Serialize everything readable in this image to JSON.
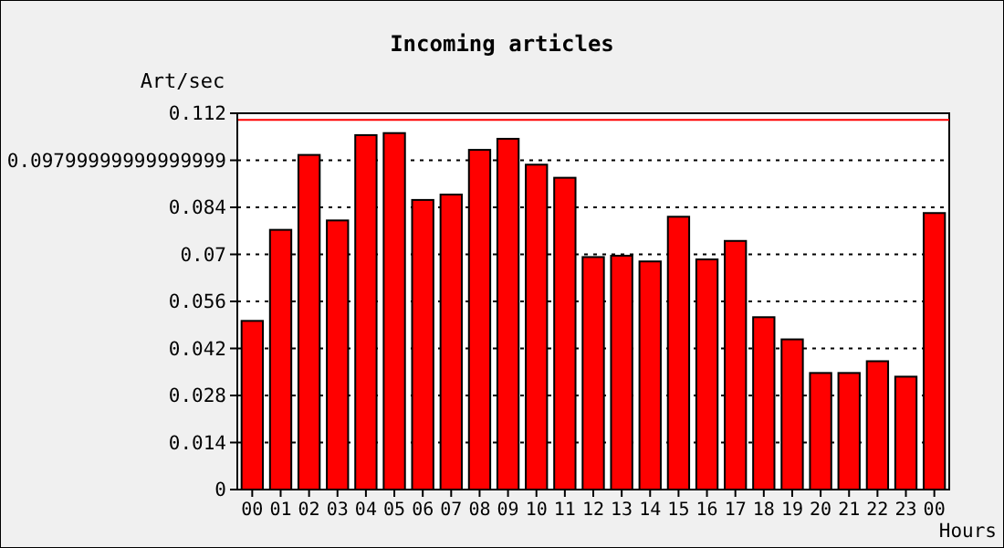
{
  "chart_data": {
    "type": "bar",
    "title": "Incoming articles",
    "ylabel": "Art/sec",
    "xlabel": "Hours",
    "categories": [
      "00",
      "01",
      "02",
      "03",
      "04",
      "05",
      "06",
      "07",
      "08",
      "09",
      "10",
      "11",
      "12",
      "13",
      "14",
      "15",
      "16",
      "17",
      "18",
      "19",
      "20",
      "21",
      "22",
      "23",
      "00"
    ],
    "values": [
      0.0502,
      0.0773,
      0.0996,
      0.0801,
      0.1055,
      0.1061,
      0.0862,
      0.0878,
      0.1011,
      0.1044,
      0.0967,
      0.0928,
      0.0692,
      0.0696,
      0.0679,
      0.0812,
      0.0685,
      0.074,
      0.0513,
      0.0447,
      0.0347,
      0.0347,
      0.0382,
      0.0336,
      0.0823
    ],
    "color": "#ff0000",
    "ylim": [
      0,
      0.112
    ],
    "yticks": [
      0,
      0.014,
      0.028,
      0.042,
      0.056,
      0.07,
      0.084,
      {
        "value": 0.098,
        "label": "0.09799999999999999"
      },
      0.112
    ],
    "grid": "y",
    "ref_lines": [
      {
        "axis": "y",
        "value": 0.11,
        "color": "#ff0000"
      }
    ]
  }
}
